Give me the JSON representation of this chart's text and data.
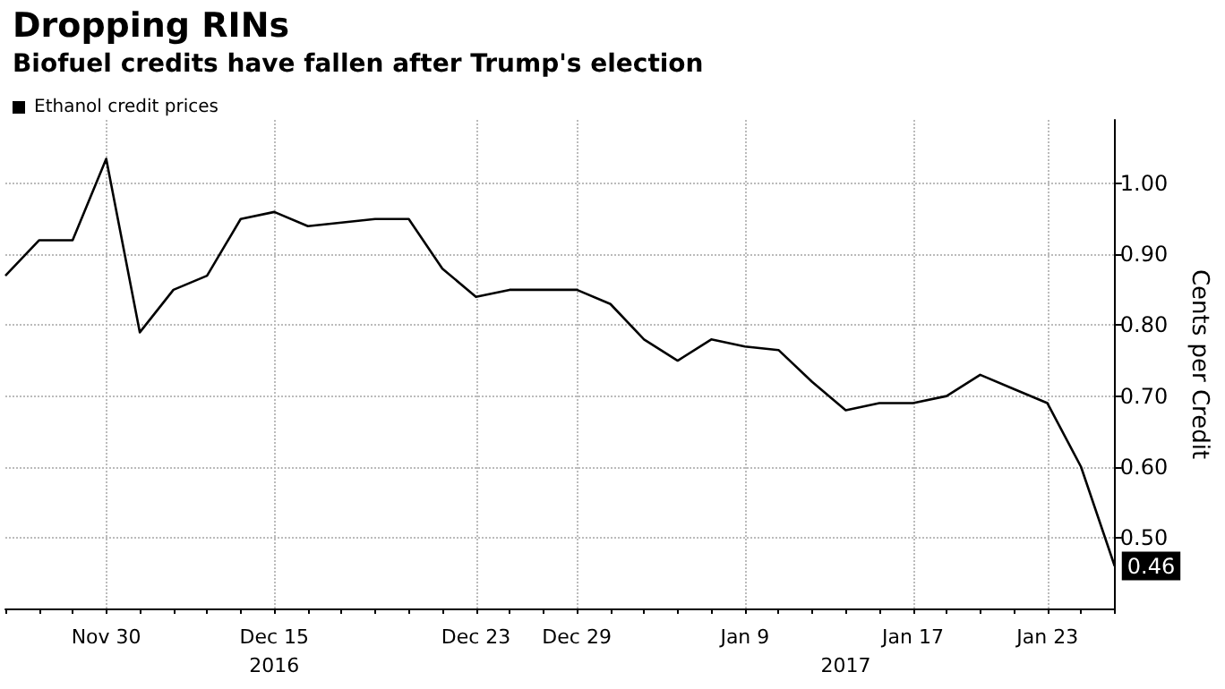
{
  "chart_data": {
    "type": "line",
    "title": "Dropping RINs",
    "subtitle": "Biofuel credits have fallen after Trump's election",
    "ylabel": "Cents per Credit",
    "categories": [
      null,
      null,
      null,
      "Nov 30",
      null,
      null,
      null,
      null,
      "Dec 15\n2016",
      null,
      null,
      null,
      null,
      null,
      "Dec 23",
      null,
      null,
      "Dec 29",
      null,
      null,
      null,
      null,
      "Jan 9",
      null,
      null,
      "\n2017",
      null,
      "Jan 17",
      null,
      null,
      null,
      "Jan 23",
      null,
      null
    ],
    "series": [
      {
        "name": "Ethanol credit prices",
        "color": "#000000",
        "values": [
          0.87,
          0.92,
          0.92,
          1.035,
          0.79,
          0.85,
          0.87,
          0.95,
          0.96,
          0.94,
          0.945,
          0.95,
          0.95,
          0.88,
          0.84,
          0.85,
          0.85,
          0.85,
          0.83,
          0.78,
          0.75,
          0.78,
          0.77,
          0.765,
          0.72,
          0.68,
          0.69,
          0.69,
          0.7,
          0.73,
          0.71,
          0.69,
          0.6,
          0.46
        ],
        "value_labels": [
          null,
          null,
          null,
          null,
          null,
          null,
          null,
          null,
          null,
          null,
          null,
          null,
          null,
          null,
          null,
          null,
          null,
          null,
          null,
          null,
          null,
          null,
          null,
          null,
          null,
          null,
          null,
          null,
          null,
          null,
          null,
          null,
          null,
          "0.46"
        ]
      }
    ],
    "ylim": [
      0.4,
      1.09
    ],
    "yticks": [
      {
        "value": 0.5,
        "label": "0.50"
      },
      {
        "value": 0.6,
        "label": "0.60"
      },
      {
        "value": 0.7,
        "label": "0.70"
      },
      {
        "value": 0.8,
        "label": "0.80"
      },
      {
        "value": 0.9,
        "label": "0.90"
      },
      {
        "value": 1.0,
        "label": "1.00"
      }
    ],
    "grid": true,
    "legend": "top left",
    "marker": "none",
    "line_style": "solid"
  }
}
